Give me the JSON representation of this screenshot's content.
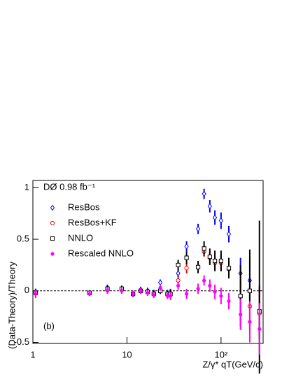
{
  "chart_data": {
    "type": "scatter",
    "annotations": [
      "DØ 0.98 fb⁻¹",
      "(b)"
    ],
    "xlabel": "Z/γ* qT(GeV/c)",
    "ylabel": "(Data-Theory)/Theory",
    "xscale": "log",
    "x": [
      1.07,
      4.0,
      6.2,
      8.8,
      11.6,
      14,
      16.6,
      19.3,
      22.6,
      27,
      29,
      35,
      43,
      57,
      66,
      76,
      86,
      100,
      121,
      161,
      202,
      256
    ],
    "series": [
      {
        "name": "ResBos",
        "color": "#0000ff",
        "marker": "diamond",
        "values": [
          -0.02,
          -0.02,
          0.03,
          0.02,
          -0.03,
          0.01,
          0.0,
          -0.02,
          0.08,
          -0.02,
          -0.02,
          0.17,
          0.43,
          0.6,
          0.94,
          0.82,
          0.71,
          0.68,
          0.55,
          0.17,
          0.1,
          -0.2
        ],
        "errors": [
          0.04,
          0.02,
          0.03,
          0.03,
          0.03,
          0.03,
          0.03,
          0.03,
          0.03,
          0.03,
          0.04,
          0.04,
          0.05,
          0.05,
          0.05,
          0.06,
          0.07,
          0.08,
          0.08,
          0.15,
          0.2,
          0.25
        ]
      },
      {
        "name": "ResBos+KF",
        "color": "#ff0000",
        "marker": "circle",
        "values": [
          -0.02,
          -0.02,
          0.02,
          0.02,
          -0.03,
          0.0,
          -0.01,
          -0.03,
          0.0,
          -0.03,
          -0.03,
          0.1,
          0.22,
          0.23,
          0.38,
          0.32,
          0.27,
          0.27,
          0.21,
          -0.05,
          -0.15,
          -0.22
        ],
        "errors": [
          0.04,
          0.02,
          0.03,
          0.03,
          0.03,
          0.03,
          0.03,
          0.03,
          0.03,
          0.03,
          0.04,
          0.04,
          0.05,
          0.05,
          0.05,
          0.06,
          0.07,
          0.08,
          0.08,
          0.15,
          0.2,
          0.25
        ]
      },
      {
        "name": "NNLO",
        "color": "#000000",
        "marker": "square",
        "values": [
          -0.02,
          -0.02,
          0.02,
          0.02,
          -0.03,
          0.0,
          -0.01,
          -0.03,
          0.0,
          -0.03,
          -0.03,
          0.25,
          0.32,
          0.23,
          0.41,
          0.33,
          0.29,
          0.29,
          0.22,
          -0.05,
          0.0,
          -0.2
        ],
        "errors": [
          0.04,
          0.02,
          0.03,
          0.03,
          0.03,
          0.03,
          0.03,
          0.03,
          0.03,
          0.03,
          0.04,
          0.05,
          0.06,
          0.06,
          0.07,
          0.08,
          0.1,
          0.1,
          0.1,
          0.3,
          0.4,
          0.88
        ]
      },
      {
        "name": "Rescaled NNLO",
        "color": "#ff00ff",
        "marker": "dot",
        "values": [
          -0.03,
          -0.03,
          0.0,
          0.0,
          -0.03,
          0.0,
          -0.02,
          -0.04,
          0.03,
          -0.05,
          -0.05,
          0.05,
          -0.03,
          0.02,
          0.1,
          0.05,
          -0.01,
          -0.05,
          -0.1,
          -0.23,
          -0.3,
          -0.37
        ],
        "errors": [
          0.04,
          0.02,
          0.03,
          0.03,
          0.03,
          0.03,
          0.03,
          0.03,
          0.03,
          0.03,
          0.04,
          0.04,
          0.05,
          0.05,
          0.05,
          0.06,
          0.07,
          0.08,
          0.08,
          0.15,
          0.2,
          0.25
        ]
      }
    ],
    "hline": 0,
    "xlim": [
      1,
      280
    ],
    "ylim": [
      -0.51,
      1.07
    ],
    "xticks": [
      1,
      10,
      {
        "value": 100,
        "label": "10²"
      }
    ],
    "yticks": [
      -0.5,
      0,
      0.5,
      1
    ],
    "legend": "upper left"
  }
}
